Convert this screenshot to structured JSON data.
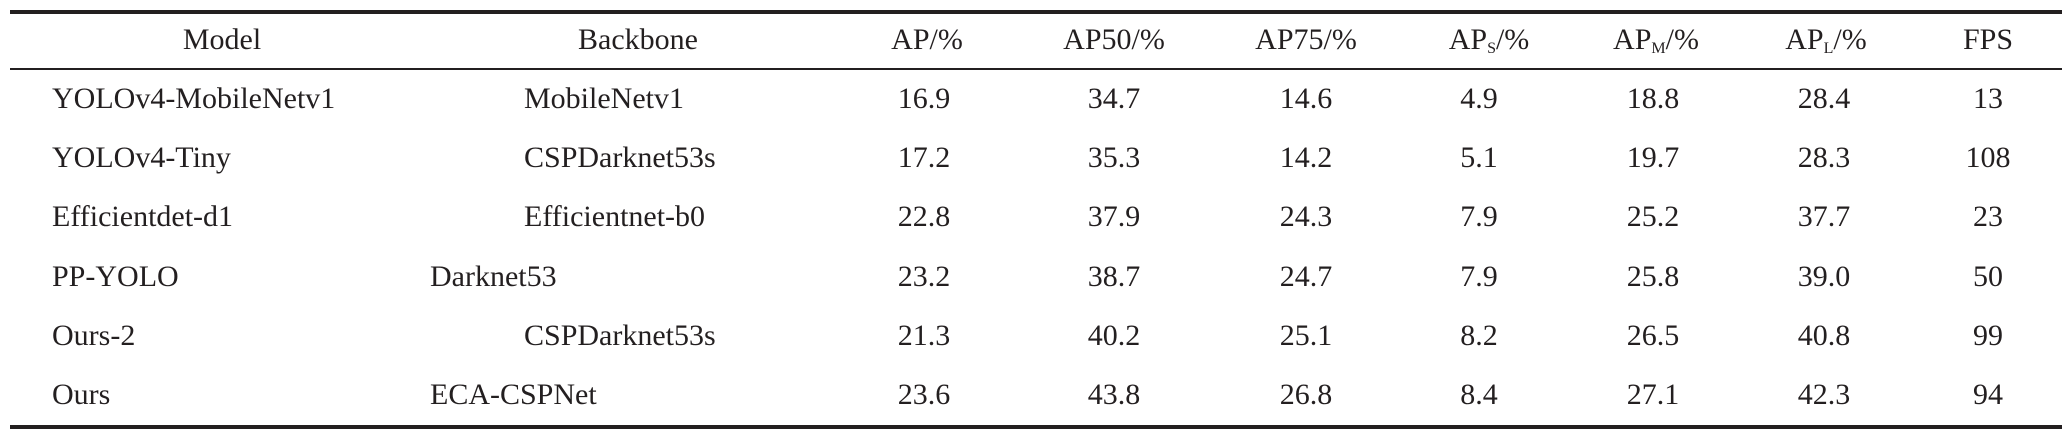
{
  "table": {
    "headers": {
      "model": "Model",
      "backbone": "Backbone",
      "ap": "AP/%",
      "ap50": "AP50/%",
      "ap75": "AP75/%",
      "aps": {
        "base": "AP",
        "sub": "S",
        "suffix": "/%"
      },
      "apm": {
        "base": "AP",
        "sub": "M",
        "suffix": "/%"
      },
      "apl": {
        "base": "AP",
        "sub": "L",
        "suffix": "/%"
      },
      "fps": "FPS"
    },
    "rows": [
      {
        "model": "YOLOv4-MobileNetv1",
        "backbone": "MobileNetv1",
        "ap": "16.9",
        "ap50": "34.7",
        "ap75": "14.6",
        "aps": "4.9",
        "apm": "18.8",
        "apl": "28.4",
        "fps": "13"
      },
      {
        "model": "YOLOv4-Tiny",
        "backbone": "CSPDarknet53s",
        "ap": "17.2",
        "ap50": "35.3",
        "ap75": "14.2",
        "aps": "5.1",
        "apm": "19.7",
        "apl": "28.3",
        "fps": "108"
      },
      {
        "model": "Efficientdet-d1",
        "backbone": "Efficientnet-b0",
        "ap": "22.8",
        "ap50": "37.9",
        "ap75": "24.3",
        "aps": "7.9",
        "apm": "25.2",
        "apl": "37.7",
        "fps": "23"
      },
      {
        "model": "PP-YOLO",
        "backbone": "Darknet53",
        "ap": "23.2",
        "ap50": "38.7",
        "ap75": "24.7",
        "aps": "7.9",
        "apm": "25.8",
        "apl": "39.0",
        "fps": "50"
      },
      {
        "model": "Ours-2",
        "backbone": "CSPDarknet53s",
        "ap": "21.3",
        "ap50": "40.2",
        "ap75": "25.1",
        "aps": "8.2",
        "apm": "26.5",
        "apl": "40.8",
        "fps": "99"
      },
      {
        "model": "Ours",
        "backbone": "ECA-CSPNet",
        "ap": "23.6",
        "ap50": "43.8",
        "ap75": "26.8",
        "aps": "8.4",
        "apm": "27.1",
        "apl": "42.3",
        "fps": "94"
      }
    ]
  }
}
